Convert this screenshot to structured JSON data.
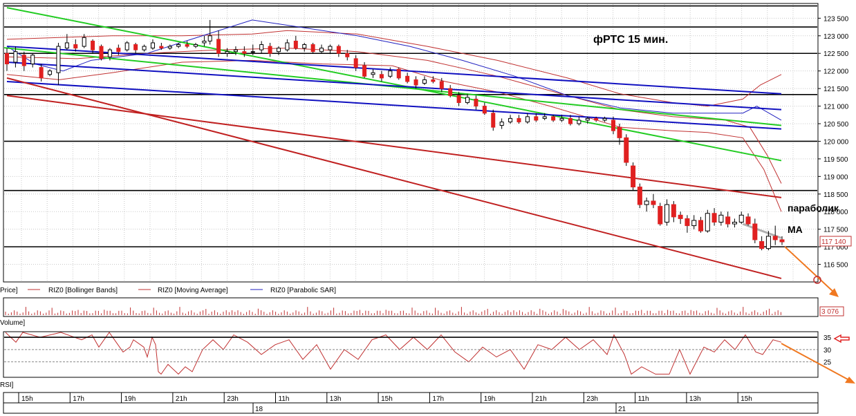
{
  "chart_data": {
    "type": "candlestick",
    "annotations": {
      "title": "фРТС  15 мин.",
      "parabolic_label": "параболик",
      "ma_label": "MA"
    },
    "price_axis": {
      "ylim": [
        116000,
        123900
      ],
      "ticks": [
        123500,
        123000,
        122500,
        122000,
        121500,
        121000,
        120500,
        120000,
        119500,
        119000,
        118500,
        118000,
        117500,
        117000,
        116500
      ],
      "tick_labels": [
        "123 500",
        "123 000",
        "122 500",
        "122 000",
        "121 500",
        "121 000",
        "120 500",
        "120 000",
        "119 500",
        "119 000",
        "118 500",
        "118 000",
        "117 500",
        "117 000",
        "116 500"
      ],
      "last_price_label": "117 140",
      "last_price": 117140
    },
    "volume_axis": {
      "last_label": "3 076"
    },
    "rsi_axis": {
      "ylim": [
        19,
        37
      ],
      "ticks": [
        35,
        30,
        25
      ],
      "tick_labels": [
        "35",
        "30",
        "25"
      ],
      "level": 35
    },
    "legend": [
      "Price]",
      "RIZ0 [Bollinger Bands]",
      "RIZ0 [Moving Average]",
      "RIZ0 [Parabolic SAR]"
    ],
    "panel_labels": {
      "volume": "Volume]",
      "rsi": "RSI]"
    },
    "time_axis": {
      "hour_labels": [
        "15h",
        "17h",
        "19h",
        "21h",
        "23h",
        "11h",
        "13h",
        "15h",
        "17h",
        "19h",
        "21h",
        "23h",
        "11h",
        "13h",
        "15h"
      ],
      "date_labels": [
        "18",
        "21"
      ]
    },
    "horizontal_levels": [
      123850,
      123250,
      122500,
      121330,
      120000,
      118600,
      117000
    ],
    "trendlines": {
      "green": [
        {
          "from": [
            0,
            123800
          ],
          "to": [
            221,
            119450
          ]
        },
        {
          "from": [
            -60,
            123250
          ],
          "to": [
            221,
            120450
          ]
        }
      ],
      "blue": [
        {
          "from": [
            0,
            122700
          ],
          "to": [
            221,
            121350
          ]
        },
        {
          "from": [
            0,
            122250
          ],
          "to": [
            221,
            120900
          ]
        },
        {
          "from": [
            0,
            121700
          ],
          "to": [
            221,
            120350
          ]
        }
      ],
      "red": [
        {
          "from": [
            0,
            121800
          ],
          "to": [
            221,
            116100
          ]
        },
        {
          "from": [
            0,
            121300
          ],
          "to": [
            221,
            118400
          ]
        }
      ],
      "gray": [
        {
          "from": [
            210,
            117650
          ],
          "to": [
            221,
            117250
          ]
        }
      ]
    },
    "candles": [
      {
        "x": 0,
        "o": 122500,
        "c": 122200,
        "h": 122650,
        "l": 122000
      },
      {
        "x": 3,
        "o": 122250,
        "c": 122550,
        "h": 122700,
        "l": 122100
      },
      {
        "x": 6,
        "o": 122450,
        "c": 122150,
        "h": 122550,
        "l": 122000
      },
      {
        "x": 9,
        "o": 122200,
        "c": 122450,
        "h": 122500,
        "l": 122100
      },
      {
        "x": 12,
        "o": 122100,
        "c": 121800,
        "h": 122200,
        "l": 121700
      },
      {
        "x": 15,
        "o": 121900,
        "c": 122000,
        "h": 122050,
        "l": 121850
      },
      {
        "x": 18,
        "o": 121950,
        "c": 122700,
        "h": 122800,
        "l": 121600
      },
      {
        "x": 21,
        "o": 122650,
        "c": 122800,
        "h": 123050,
        "l": 122600
      },
      {
        "x": 24,
        "o": 122750,
        "c": 122650,
        "h": 122900,
        "l": 122550
      },
      {
        "x": 27,
        "o": 122700,
        "c": 122950,
        "h": 123050,
        "l": 122650
      },
      {
        "x": 30,
        "o": 122850,
        "c": 122600,
        "h": 122900,
        "l": 122500
      },
      {
        "x": 33,
        "o": 122700,
        "c": 122350,
        "h": 122750,
        "l": 122300
      },
      {
        "x": 36,
        "o": 122400,
        "c": 122600,
        "h": 122650,
        "l": 122300
      },
      {
        "x": 39,
        "o": 122650,
        "c": 122550,
        "h": 122750,
        "l": 122450
      },
      {
        "x": 42,
        "o": 122600,
        "c": 122800,
        "h": 122850,
        "l": 122550
      },
      {
        "x": 45,
        "o": 122750,
        "c": 122600,
        "h": 122800,
        "l": 122500
      },
      {
        "x": 48,
        "o": 122600,
        "c": 122700,
        "h": 122750,
        "l": 122550
      },
      {
        "x": 51,
        "o": 122650,
        "c": 122800,
        "h": 122900,
        "l": 122600
      },
      {
        "x": 54,
        "o": 122700,
        "c": 122650,
        "h": 122800,
        "l": 122600
      },
      {
        "x": 57,
        "o": 122650,
        "c": 122700,
        "h": 122750,
        "l": 122600
      },
      {
        "x": 60,
        "o": 122700,
        "c": 122750,
        "h": 122800,
        "l": 122650
      },
      {
        "x": 63,
        "o": 122750,
        "c": 122700,
        "h": 122850,
        "l": 122650
      },
      {
        "x": 66,
        "o": 122700,
        "c": 122750,
        "h": 122800,
        "l": 122650
      },
      {
        "x": 69,
        "o": 122800,
        "c": 122850,
        "h": 123000,
        "l": 122700
      },
      {
        "x": 71,
        "o": 122850,
        "c": 123000,
        "h": 123450,
        "l": 122750
      },
      {
        "x": 74,
        "o": 122900,
        "c": 122500,
        "h": 123150,
        "l": 122400
      },
      {
        "x": 77,
        "o": 122500,
        "c": 122550,
        "h": 122650,
        "l": 122400
      },
      {
        "x": 80,
        "o": 122550,
        "c": 122600,
        "h": 122700,
        "l": 122450
      },
      {
        "x": 83,
        "o": 122550,
        "c": 122500,
        "h": 122700,
        "l": 122400
      },
      {
        "x": 86,
        "o": 122550,
        "c": 122550,
        "h": 122750,
        "l": 122450
      },
      {
        "x": 89,
        "o": 122600,
        "c": 122750,
        "h": 122850,
        "l": 122500
      },
      {
        "x": 92,
        "o": 122700,
        "c": 122500,
        "h": 122800,
        "l": 122400
      },
      {
        "x": 95,
        "o": 122550,
        "c": 122650,
        "h": 122700,
        "l": 122450
      },
      {
        "x": 98,
        "o": 122600,
        "c": 122800,
        "h": 122900,
        "l": 122550
      },
      {
        "x": 101,
        "o": 122850,
        "c": 122650,
        "h": 123000,
        "l": 122600
      },
      {
        "x": 104,
        "o": 122650,
        "c": 122750,
        "h": 122800,
        "l": 122550
      },
      {
        "x": 107,
        "o": 122750,
        "c": 122550,
        "h": 122800,
        "l": 122500
      },
      {
        "x": 110,
        "o": 122550,
        "c": 122650,
        "h": 122750,
        "l": 122500
      },
      {
        "x": 113,
        "o": 122600,
        "c": 122700,
        "h": 122750,
        "l": 122500
      },
      {
        "x": 116,
        "o": 122700,
        "c": 122500,
        "h": 122750,
        "l": 122400
      },
      {
        "x": 119,
        "o": 122500,
        "c": 122400,
        "h": 122600,
        "l": 122300
      },
      {
        "x": 122,
        "o": 122350,
        "c": 122100,
        "h": 122450,
        "l": 122000
      },
      {
        "x": 125,
        "o": 122150,
        "c": 121850,
        "h": 122250,
        "l": 121800
      },
      {
        "x": 128,
        "o": 121900,
        "c": 121950,
        "h": 122050,
        "l": 121800
      },
      {
        "x": 131,
        "o": 121900,
        "c": 121800,
        "h": 122000,
        "l": 121700
      },
      {
        "x": 134,
        "o": 121850,
        "c": 122000,
        "h": 122100,
        "l": 121800
      },
      {
        "x": 137,
        "o": 122050,
        "c": 121800,
        "h": 122100,
        "l": 121750
      },
      {
        "x": 140,
        "o": 121850,
        "c": 121700,
        "h": 121950,
        "l": 121650
      },
      {
        "x": 143,
        "o": 121750,
        "c": 121600,
        "h": 121850,
        "l": 121500
      },
      {
        "x": 146,
        "o": 121650,
        "c": 121750,
        "h": 121850,
        "l": 121600
      },
      {
        "x": 149,
        "o": 121750,
        "c": 121700,
        "h": 121850,
        "l": 121650
      },
      {
        "x": 152,
        "o": 121700,
        "c": 121500,
        "h": 121800,
        "l": 121400
      },
      {
        "x": 155,
        "o": 121500,
        "c": 121300,
        "h": 121600,
        "l": 121250
      },
      {
        "x": 158,
        "o": 121300,
        "c": 121100,
        "h": 121400,
        "l": 121000
      },
      {
        "x": 161,
        "o": 121100,
        "c": 121250,
        "h": 121350,
        "l": 121050
      },
      {
        "x": 164,
        "o": 121200,
        "c": 121000,
        "h": 121300,
        "l": 120900
      },
      {
        "x": 167,
        "o": 121000,
        "c": 120800,
        "h": 121100,
        "l": 120750
      },
      {
        "x": 170,
        "o": 120800,
        "c": 120400,
        "h": 120900,
        "l": 120300
      },
      {
        "x": 173,
        "o": 120450,
        "c": 120550,
        "h": 120650,
        "l": 120350
      },
      {
        "x": 176,
        "o": 120550,
        "c": 120650,
        "h": 120750,
        "l": 120500
      },
      {
        "x": 179,
        "o": 120650,
        "c": 120550,
        "h": 120750,
        "l": 120500
      },
      {
        "x": 182,
        "o": 120550,
        "c": 120700,
        "h": 120800,
        "l": 120500
      },
      {
        "x": 185,
        "o": 120700,
        "c": 120600,
        "h": 120800,
        "l": 120550
      },
      {
        "x": 188,
        "o": 120650,
        "c": 120700,
        "h": 120800,
        "l": 120600
      },
      {
        "x": 191,
        "o": 120700,
        "c": 120600,
        "h": 120750,
        "l": 120550
      },
      {
        "x": 194,
        "o": 120600,
        "c": 120650,
        "h": 120750,
        "l": 120550
      },
      {
        "x": 197,
        "o": 120650,
        "c": 120500,
        "h": 120750,
        "l": 120450
      },
      {
        "x": 200,
        "o": 120500,
        "c": 120600,
        "h": 120700,
        "l": 120450
      },
      {
        "x": 203,
        "o": 120600,
        "c": 120650,
        "h": 120700,
        "l": 120500
      },
      {
        "x": 206,
        "o": 120650,
        "c": 120600,
        "h": 120700,
        "l": 120550
      },
      {
        "x": 209,
        "o": 120600,
        "c": 120650,
        "h": 120700,
        "l": 120550
      },
      {
        "x": 212,
        "o": 120600,
        "c": 120300,
        "h": 120700,
        "l": 120200
      }
    ],
    "candles_day2": [
      {
        "x": 0,
        "o": 120400,
        "c": 120100,
        "h": 120500,
        "l": 119900
      },
      {
        "x": 2,
        "o": 120100,
        "c": 119400,
        "h": 120200,
        "l": 119300
      },
      {
        "x": 4,
        "o": 119300,
        "c": 118700,
        "h": 119400,
        "l": 118600
      },
      {
        "x": 6,
        "o": 118700,
        "c": 118200,
        "h": 118800,
        "l": 118100
      },
      {
        "x": 8,
        "o": 118200,
        "c": 118300,
        "h": 118400,
        "l": 118000
      },
      {
        "x": 10,
        "o": 118300,
        "c": 118200,
        "h": 118500,
        "l": 118100
      },
      {
        "x": 12,
        "o": 118150,
        "c": 117650,
        "h": 118250,
        "l": 117600
      },
      {
        "x": 14,
        "o": 117700,
        "c": 118200,
        "h": 118350,
        "l": 117600
      },
      {
        "x": 16,
        "o": 118200,
        "c": 117850,
        "h": 118300,
        "l": 117700
      },
      {
        "x": 18,
        "o": 117900,
        "c": 117800,
        "h": 118000,
        "l": 117650
      },
      {
        "x": 20,
        "o": 117800,
        "c": 117600,
        "h": 117900,
        "l": 117400
      },
      {
        "x": 22,
        "o": 117600,
        "c": 117750,
        "h": 117900,
        "l": 117500
      },
      {
        "x": 24,
        "o": 117750,
        "c": 117450,
        "h": 117850,
        "l": 117400
      },
      {
        "x": 26,
        "o": 117450,
        "c": 117950,
        "h": 118050,
        "l": 117400
      },
      {
        "x": 28,
        "o": 117950,
        "c": 117700,
        "h": 118100,
        "l": 117600
      },
      {
        "x": 30,
        "o": 117700,
        "c": 117900,
        "h": 118000,
        "l": 117600
      },
      {
        "x": 32,
        "o": 117850,
        "c": 117650,
        "h": 118000,
        "l": 117550
      },
      {
        "x": 34,
        "o": 117650,
        "c": 117700,
        "h": 117800,
        "l": 117550
      },
      {
        "x": 36,
        "o": 117700,
        "c": 117900,
        "h": 118000,
        "l": 117650
      },
      {
        "x": 38,
        "o": 117850,
        "c": 117650,
        "h": 117950,
        "l": 117600
      },
      {
        "x": 40,
        "o": 117650,
        "c": 117200,
        "h": 117800,
        "l": 117100
      },
      {
        "x": 42,
        "o": 117150,
        "c": 116950,
        "h": 117300,
        "l": 116900
      },
      {
        "x": 44,
        "o": 116950,
        "c": 117300,
        "h": 117450,
        "l": 116900
      },
      {
        "x": 46,
        "o": 117300,
        "c": 117200,
        "h": 117600,
        "l": 117050
      },
      {
        "x": 48,
        "o": 117200,
        "c": 117140,
        "h": 117300,
        "l": 117050
      }
    ]
  }
}
